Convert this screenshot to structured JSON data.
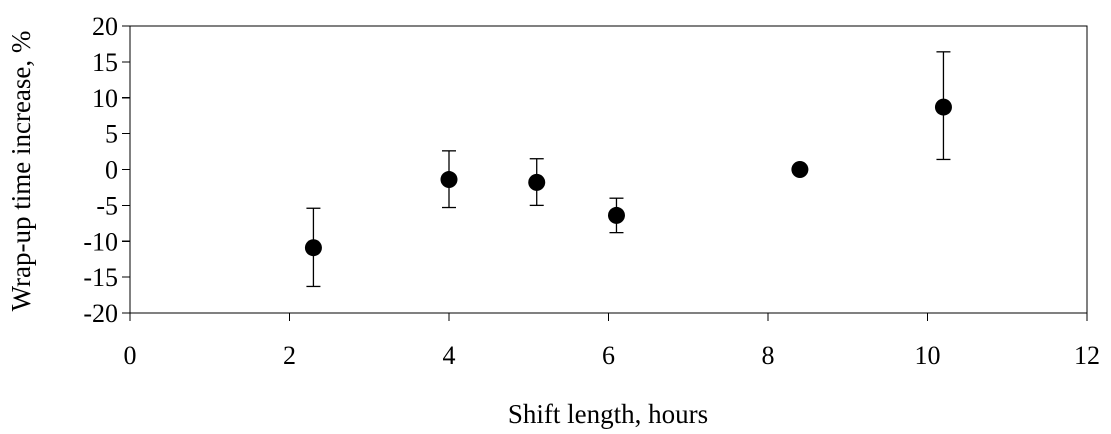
{
  "chart_data": {
    "type": "scatter",
    "title": "",
    "xlabel": "Shift length, hours",
    "ylabel": "Wrap-up time increase, %",
    "xlim": [
      0,
      12
    ],
    "ylim": [
      -20,
      20
    ],
    "xticks": [
      0,
      2,
      4,
      6,
      8,
      10,
      12
    ],
    "yticks": [
      -20,
      -15,
      -10,
      -5,
      0,
      5,
      10,
      15,
      20
    ],
    "xtick_labels": [
      "0",
      "2",
      "4",
      "6",
      "8",
      "10",
      "12"
    ],
    "ytick_labels": [
      "-20",
      "-15",
      "-10",
      "-5",
      "0",
      "5",
      "10",
      "15",
      "20"
    ],
    "grid": false,
    "legend": "none",
    "marker_color": "#000000",
    "points": [
      {
        "x": 2.3,
        "y": -10.9,
        "y_low": -16.3,
        "y_high": -5.4
      },
      {
        "x": 4.0,
        "y": -1.4,
        "y_low": -5.3,
        "y_high": 2.6
      },
      {
        "x": 5.1,
        "y": -1.8,
        "y_low": -5.0,
        "y_high": 1.5
      },
      {
        "x": 6.1,
        "y": -6.4,
        "y_low": -8.8,
        "y_high": -4.0
      },
      {
        "x": 8.4,
        "y": 0.0
      },
      {
        "x": 10.2,
        "y": 8.7,
        "y_low": 1.4,
        "y_high": 16.4
      }
    ]
  }
}
